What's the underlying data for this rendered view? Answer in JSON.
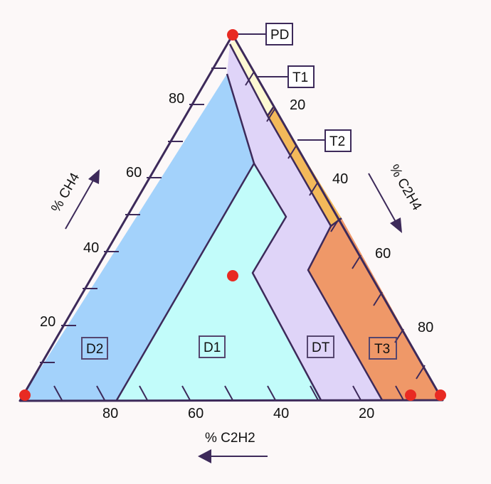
{
  "diagram": {
    "axes": {
      "ch4_label": "% CH4",
      "c2h4_label": "% C2H4",
      "c2h2_label": "% C2H2",
      "ch4_ticks": [
        "20",
        "40",
        "60",
        "80"
      ],
      "c2h4_ticks": [
        "20",
        "40",
        "60",
        "80"
      ],
      "c2h2_ticks": [
        "80",
        "60",
        "40",
        "20"
      ]
    },
    "zones": [
      {
        "id": "D2",
        "label": "D2",
        "color": "#a3d2fb"
      },
      {
        "id": "D1",
        "label": "D1",
        "color": "#c2fcfa"
      },
      {
        "id": "DT",
        "label": "DT",
        "color": "#dfd4f8"
      },
      {
        "id": "T3",
        "label": "T3",
        "color": "#ef9868"
      },
      {
        "id": "T2",
        "label": "T2",
        "color": "#f3b95a"
      },
      {
        "id": "T1",
        "label": "T1",
        "color": "#fdf9d3"
      },
      {
        "id": "PD",
        "label": "PD",
        "color": "#ffffff"
      }
    ],
    "marker_color": "#e82a22",
    "arrow_color": "#3d2a5a",
    "outline_color": "#3d2a5a"
  }
}
